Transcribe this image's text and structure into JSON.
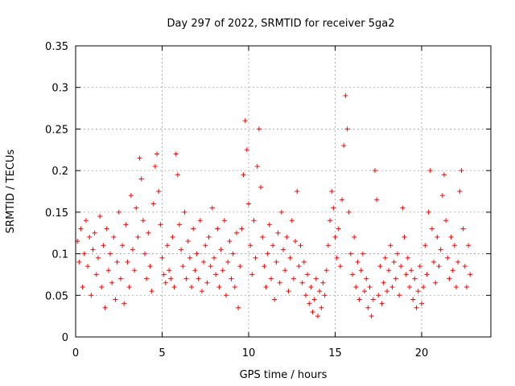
{
  "chart_data": {
    "type": "scatter",
    "title": "Day 297 of 2022, SRMTID for receiver 5ga2",
    "xlabel": "GPS time / hours",
    "ylabel": "SRMTID / TECUs",
    "xlim": [
      0,
      24
    ],
    "ylim": [
      0,
      0.35
    ],
    "grid": true,
    "marker": "+",
    "color": "#ff0000",
    "x_ticks": [
      0,
      5,
      10,
      15,
      20
    ],
    "x_tick_labels": [
      "0",
      "5",
      "10",
      "15",
      "20"
    ],
    "y_ticks": [
      0,
      0.05,
      0.1,
      0.15,
      0.2,
      0.25,
      0.3,
      0.35
    ],
    "y_tick_labels": [
      "0",
      "0.05",
      "0.1",
      "0.15",
      "0.2",
      "0.25",
      "0.3",
      "0.35"
    ],
    "series": [
      {
        "name": "SRMTID",
        "points": [
          [
            0.1,
            0.115
          ],
          [
            0.2,
            0.09
          ],
          [
            0.3,
            0.13
          ],
          [
            0.4,
            0.06
          ],
          [
            0.5,
            0.1
          ],
          [
            0.6,
            0.14
          ],
          [
            0.7,
            0.085
          ],
          [
            0.8,
            0.12
          ],
          [
            0.9,
            0.05
          ],
          [
            1.0,
            0.105
          ],
          [
            1.1,
            0.125
          ],
          [
            1.2,
            0.075
          ],
          [
            1.3,
            0.095
          ],
          [
            1.4,
            0.145
          ],
          [
            1.5,
            0.06
          ],
          [
            1.6,
            0.11
          ],
          [
            1.7,
            0.035
          ],
          [
            1.8,
            0.13
          ],
          [
            1.9,
            0.08
          ],
          [
            2.0,
            0.1
          ],
          [
            2.1,
            0.065
          ],
          [
            2.2,
            0.12
          ],
          [
            2.3,
            0.045
          ],
          [
            2.4,
            0.09
          ],
          [
            2.5,
            0.15
          ],
          [
            2.6,
            0.07
          ],
          [
            2.7,
            0.11
          ],
          [
            2.8,
            0.04
          ],
          [
            2.9,
            0.135
          ],
          [
            3.0,
            0.09
          ],
          [
            3.1,
            0.06
          ],
          [
            3.2,
            0.17
          ],
          [
            3.3,
            0.105
          ],
          [
            3.4,
            0.08
          ],
          [
            3.5,
            0.155
          ],
          [
            3.6,
            0.12
          ],
          [
            3.7,
            0.215
          ],
          [
            3.8,
            0.19
          ],
          [
            3.9,
            0.14
          ],
          [
            4.0,
            0.1
          ],
          [
            4.1,
            0.07
          ],
          [
            4.2,
            0.125
          ],
          [
            4.3,
            0.085
          ],
          [
            4.4,
            0.055
          ],
          [
            4.5,
            0.16
          ],
          [
            4.6,
            0.205
          ],
          [
            4.7,
            0.22
          ],
          [
            4.8,
            0.175
          ],
          [
            4.9,
            0.135
          ],
          [
            5.0,
            0.095
          ],
          [
            5.1,
            0.075
          ],
          [
            5.2,
            0.065
          ],
          [
            5.3,
            0.11
          ],
          [
            5.4,
            0.08
          ],
          [
            5.5,
            0.07
          ],
          [
            5.6,
            0.12
          ],
          [
            5.7,
            0.06
          ],
          [
            5.8,
            0.22
          ],
          [
            5.9,
            0.195
          ],
          [
            6.0,
            0.135
          ],
          [
            6.1,
            0.105
          ],
          [
            6.2,
            0.085
          ],
          [
            6.3,
            0.15
          ],
          [
            6.4,
            0.07
          ],
          [
            6.5,
            0.115
          ],
          [
            6.6,
            0.095
          ],
          [
            6.7,
            0.06
          ],
          [
            6.8,
            0.13
          ],
          [
            6.9,
            0.08
          ],
          [
            7.0,
            0.1
          ],
          [
            7.1,
            0.07
          ],
          [
            7.2,
            0.14
          ],
          [
            7.3,
            0.055
          ],
          [
            7.4,
            0.09
          ],
          [
            7.5,
            0.11
          ],
          [
            7.6,
            0.065
          ],
          [
            7.7,
            0.12
          ],
          [
            7.8,
            0.085
          ],
          [
            7.9,
            0.155
          ],
          [
            8.0,
            0.095
          ],
          [
            8.1,
            0.075
          ],
          [
            8.2,
            0.13
          ],
          [
            8.3,
            0.06
          ],
          [
            8.4,
            0.105
          ],
          [
            8.5,
            0.08
          ],
          [
            8.6,
            0.14
          ],
          [
            8.7,
            0.05
          ],
          [
            8.8,
            0.09
          ],
          [
            8.9,
            0.115
          ],
          [
            9.0,
            0.07
          ],
          [
            9.1,
            0.1
          ],
          [
            9.2,
            0.06
          ],
          [
            9.3,
            0.125
          ],
          [
            9.4,
            0.035
          ],
          [
            9.5,
            0.085
          ],
          [
            9.6,
            0.13
          ],
          [
            9.7,
            0.195
          ],
          [
            9.8,
            0.26
          ],
          [
            9.9,
            0.225
          ],
          [
            10.0,
            0.16
          ],
          [
            10.1,
            0.11
          ],
          [
            10.2,
            0.075
          ],
          [
            10.3,
            0.14
          ],
          [
            10.4,
            0.095
          ],
          [
            10.5,
            0.205
          ],
          [
            10.6,
            0.25
          ],
          [
            10.7,
            0.18
          ],
          [
            10.8,
            0.12
          ],
          [
            10.9,
            0.085
          ],
          [
            11.0,
            0.06
          ],
          [
            11.1,
            0.1
          ],
          [
            11.2,
            0.135
          ],
          [
            11.3,
            0.07
          ],
          [
            11.4,
            0.11
          ],
          [
            11.5,
            0.045
          ],
          [
            11.6,
            0.09
          ],
          [
            11.7,
            0.125
          ],
          [
            11.8,
            0.065
          ],
          [
            11.9,
            0.15
          ],
          [
            12.0,
            0.105
          ],
          [
            12.1,
            0.08
          ],
          [
            12.2,
            0.12
          ],
          [
            12.3,
            0.055
          ],
          [
            12.4,
            0.095
          ],
          [
            12.5,
            0.14
          ],
          [
            12.6,
            0.07
          ],
          [
            12.7,
            0.115
          ],
          [
            12.8,
            0.175
          ],
          [
            12.9,
            0.085
          ],
          [
            13.0,
            0.11
          ],
          [
            13.1,
            0.065
          ],
          [
            13.2,
            0.09
          ],
          [
            13.3,
            0.05
          ],
          [
            13.4,
            0.075
          ],
          [
            13.5,
            0.04
          ],
          [
            13.6,
            0.06
          ],
          [
            13.7,
            0.03
          ],
          [
            13.8,
            0.045
          ],
          [
            13.9,
            0.07
          ],
          [
            14.0,
            0.025
          ],
          [
            14.1,
            0.055
          ],
          [
            14.2,
            0.035
          ],
          [
            14.3,
            0.065
          ],
          [
            14.4,
            0.05
          ],
          [
            14.5,
            0.08
          ],
          [
            14.6,
            0.11
          ],
          [
            14.7,
            0.14
          ],
          [
            14.8,
            0.175
          ],
          [
            14.9,
            0.155
          ],
          [
            15.0,
            0.12
          ],
          [
            15.1,
            0.095
          ],
          [
            15.2,
            0.13
          ],
          [
            15.3,
            0.085
          ],
          [
            15.4,
            0.165
          ],
          [
            15.5,
            0.23
          ],
          [
            15.6,
            0.29
          ],
          [
            15.7,
            0.25
          ],
          [
            15.8,
            0.15
          ],
          [
            15.9,
            0.1
          ],
          [
            16.0,
            0.075
          ],
          [
            16.1,
            0.12
          ],
          [
            16.2,
            0.06
          ],
          [
            16.3,
            0.09
          ],
          [
            16.4,
            0.045
          ],
          [
            16.5,
            0.08
          ],
          [
            16.6,
            0.1
          ],
          [
            16.7,
            0.055
          ],
          [
            16.8,
            0.07
          ],
          [
            16.9,
            0.035
          ],
          [
            17.0,
            0.06
          ],
          [
            17.1,
            0.025
          ],
          [
            17.2,
            0.045
          ],
          [
            17.3,
            0.2
          ],
          [
            17.4,
            0.165
          ],
          [
            17.5,
            0.05
          ],
          [
            17.6,
            0.085
          ],
          [
            17.7,
            0.04
          ],
          [
            17.8,
            0.065
          ],
          [
            17.9,
            0.095
          ],
          [
            18.0,
            0.055
          ],
          [
            18.1,
            0.08
          ],
          [
            18.2,
            0.11
          ],
          [
            18.3,
            0.06
          ],
          [
            18.4,
            0.09
          ],
          [
            18.5,
            0.07
          ],
          [
            18.6,
            0.1
          ],
          [
            18.7,
            0.05
          ],
          [
            18.8,
            0.085
          ],
          [
            18.9,
            0.155
          ],
          [
            19.0,
            0.12
          ],
          [
            19.1,
            0.075
          ],
          [
            19.2,
            0.095
          ],
          [
            19.3,
            0.06
          ],
          [
            19.4,
            0.08
          ],
          [
            19.5,
            0.045
          ],
          [
            19.6,
            0.07
          ],
          [
            19.7,
            0.035
          ],
          [
            19.8,
            0.055
          ],
          [
            19.9,
            0.085
          ],
          [
            20.0,
            0.04
          ],
          [
            20.1,
            0.06
          ],
          [
            20.2,
            0.11
          ],
          [
            20.3,
            0.075
          ],
          [
            20.4,
            0.15
          ],
          [
            20.5,
            0.2
          ],
          [
            20.6,
            0.13
          ],
          [
            20.7,
            0.09
          ],
          [
            20.8,
            0.065
          ],
          [
            20.9,
            0.12
          ],
          [
            21.0,
            0.085
          ],
          [
            21.1,
            0.105
          ],
          [
            21.2,
            0.17
          ],
          [
            21.3,
            0.195
          ],
          [
            21.4,
            0.14
          ],
          [
            21.5,
            0.095
          ],
          [
            21.6,
            0.07
          ],
          [
            21.7,
            0.12
          ],
          [
            21.8,
            0.08
          ],
          [
            21.9,
            0.11
          ],
          [
            22.0,
            0.06
          ],
          [
            22.1,
            0.09
          ],
          [
            22.2,
            0.175
          ],
          [
            22.3,
            0.2
          ],
          [
            22.4,
            0.13
          ],
          [
            22.5,
            0.085
          ],
          [
            22.6,
            0.06
          ],
          [
            22.7,
            0.11
          ],
          [
            22.8,
            0.075
          ]
        ]
      }
    ]
  }
}
